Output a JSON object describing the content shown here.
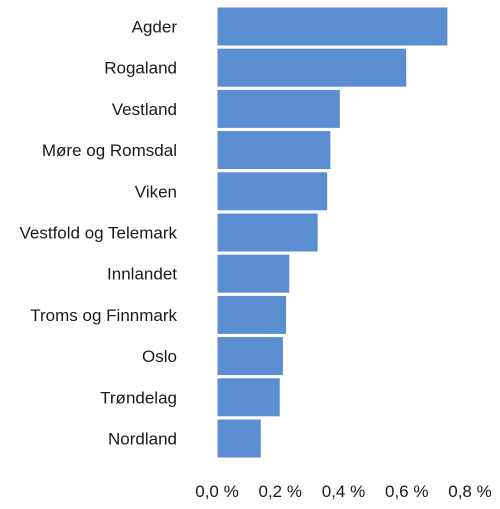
{
  "chart_data": {
    "type": "bar",
    "orientation": "horizontal",
    "title": "",
    "xlabel": "",
    "ylabel": "",
    "categories": [
      "Agder",
      "Rogaland",
      "Vestland",
      "Møre og Romsdal",
      "Viken",
      "Vestfold og Telemark",
      "Innlandet",
      "Troms og Finnmark",
      "Oslo",
      "Trøndelag",
      "Nordland"
    ],
    "values": [
      0.73,
      0.6,
      0.39,
      0.36,
      0.35,
      0.32,
      0.23,
      0.22,
      0.21,
      0.2,
      0.14
    ],
    "xlim": [
      0,
      0.8
    ],
    "xticks": [
      0.0,
      0.2,
      0.4,
      0.6,
      0.8
    ],
    "xtick_labels": [
      "0,0 %",
      "0,2 %",
      "0,4 %",
      "0,6 %",
      "0,8 %"
    ],
    "bar_color": "#5b8ed0",
    "grid": false,
    "legend": "none"
  }
}
